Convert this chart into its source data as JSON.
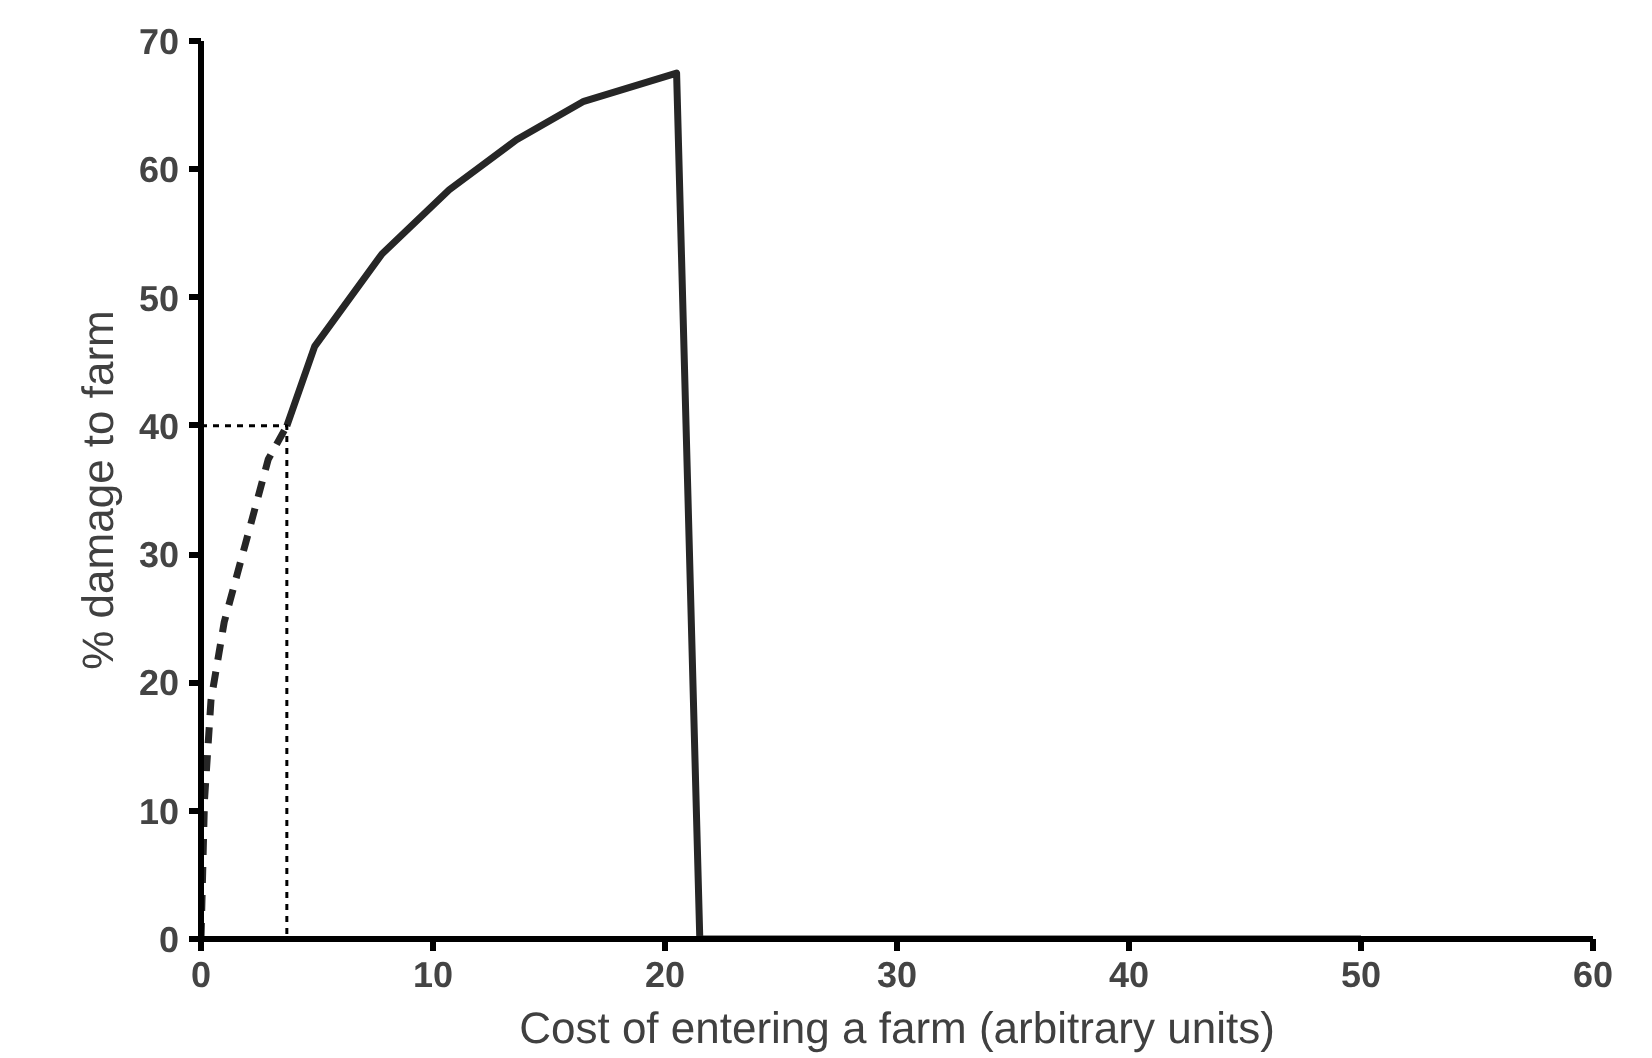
{
  "chart_data": {
    "type": "line",
    "xlabel": "Cost of entering a farm (arbitrary units)",
    "ylabel": "% damage to farm",
    "xlim": [
      0,
      60
    ],
    "xticks": [
      0,
      10,
      20,
      30,
      40,
      50,
      60
    ],
    "ylim": [
      0,
      70
    ],
    "yticks": [
      0,
      10,
      20,
      30,
      40,
      50,
      60,
      70
    ],
    "grid": false,
    "marker": "none",
    "series": [
      {
        "color": "#262626",
        "line_style": "solid",
        "x": [
          3.7,
          4.9,
          7.8,
          10.7,
          13.6,
          16.5,
          20.5,
          21.5,
          50
        ],
        "values": [
          40,
          46.2,
          53.4,
          58.4,
          62.3,
          65.3,
          67.5,
          0,
          0
        ]
      },
      {
        "color": "#262626",
        "line_style": "dashed",
        "x": [
          0,
          0.15,
          0.43,
          1.0,
          1.9,
          2.9,
          3.7
        ],
        "values": [
          0,
          10.8,
          18.6,
          24.7,
          30.7,
          37.4,
          40
        ]
      },
      {
        "color": "#000000",
        "line_style": "dotted",
        "x": [
          0,
          3.7,
          3.7
        ],
        "values": [
          40,
          40,
          0
        ]
      }
    ]
  }
}
